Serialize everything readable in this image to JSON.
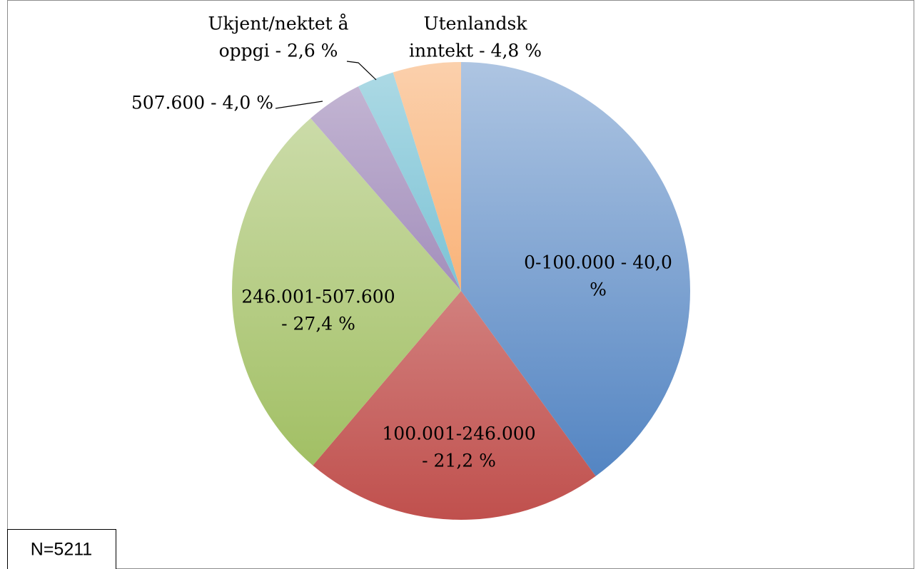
{
  "chart_data": {
    "type": "pie",
    "categories": [
      "0-100.000",
      "100.001-246.000",
      "246.001-507.600",
      "507.600",
      "Ukjent/nektet å oppgi",
      "Utenlandsk inntekt"
    ],
    "values": [
      40.0,
      21.2,
      27.4,
      4.0,
      2.6,
      4.8
    ],
    "value_labels": [
      [
        "0-100.000 - 40,0",
        "%"
      ],
      [
        "100.001-246.000",
        "- 21,2 %"
      ],
      [
        "246.001-507.600",
        "- 27,4 %"
      ],
      [
        "507.600 - 4,0 %"
      ],
      [
        "Ukjent/nektet å",
        "oppgi - 2,6 %"
      ],
      [
        "Utenlandsk",
        "inntekt - 4,8 %"
      ]
    ],
    "colors": [
      "#4a7ebf",
      "#c0504d",
      "#9bbb59",
      "#8064a2",
      "#4bacc6",
      "#f79646"
    ],
    "start_angle": 0,
    "direction": "clockwise",
    "note": "N=5211"
  }
}
